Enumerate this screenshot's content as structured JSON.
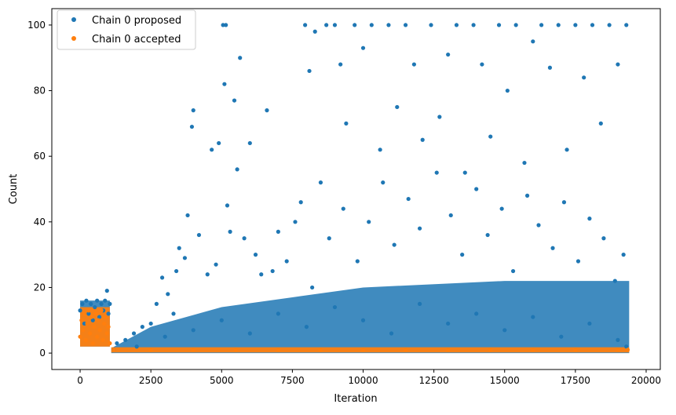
{
  "chart_data": {
    "type": "scatter",
    "title": "",
    "xlabel": "Iteration",
    "ylabel": "Count",
    "xlim": [
      -1000,
      20500
    ],
    "ylim": [
      -5,
      105
    ],
    "x_ticks": [
      0,
      2500,
      5000,
      7500,
      10000,
      12500,
      15000,
      17500,
      20000
    ],
    "x_tick_labels": [
      "0",
      "2500",
      "5000",
      "7500",
      "10000",
      "12500",
      "15000",
      "17500",
      "20000"
    ],
    "y_ticks": [
      0,
      20,
      40,
      60,
      80,
      100
    ],
    "y_tick_labels": [
      "0",
      "20",
      "40",
      "60",
      "80",
      "100"
    ],
    "grid": false,
    "legend": {
      "placement": "top-left"
    },
    "series": [
      {
        "name": "Chain 0 proposed",
        "color": "#1f77b4",
        "points": [
          [
            0,
            13
          ],
          [
            80,
            15
          ],
          [
            150,
            9
          ],
          [
            220,
            16
          ],
          [
            300,
            12
          ],
          [
            380,
            15
          ],
          [
            450,
            10
          ],
          [
            520,
            14
          ],
          [
            600,
            16
          ],
          [
            680,
            11
          ],
          [
            750,
            15
          ],
          [
            820,
            13
          ],
          [
            880,
            16
          ],
          [
            950,
            19
          ],
          [
            1000,
            12
          ],
          [
            1050,
            15
          ],
          [
            1300,
            3
          ],
          [
            1600,
            4
          ],
          [
            1900,
            6
          ],
          [
            2200,
            8
          ],
          [
            2500,
            9
          ],
          [
            2700,
            15
          ],
          [
            2900,
            23
          ],
          [
            3100,
            18
          ],
          [
            3300,
            12
          ],
          [
            3400,
            25
          ],
          [
            3500,
            32
          ],
          [
            3700,
            29
          ],
          [
            3800,
            42
          ],
          [
            3950,
            69
          ],
          [
            4000,
            74
          ],
          [
            4200,
            36
          ],
          [
            4500,
            24
          ],
          [
            4650,
            62
          ],
          [
            4800,
            27
          ],
          [
            4900,
            64
          ],
          [
            5050,
            100
          ],
          [
            5150,
            100
          ],
          [
            5100,
            82
          ],
          [
            5200,
            45
          ],
          [
            5300,
            37
          ],
          [
            5450,
            77
          ],
          [
            5550,
            56
          ],
          [
            5650,
            90
          ],
          [
            5800,
            35
          ],
          [
            6000,
            64
          ],
          [
            6200,
            30
          ],
          [
            6400,
            24
          ],
          [
            6600,
            74
          ],
          [
            6800,
            25
          ],
          [
            7000,
            37
          ],
          [
            7300,
            28
          ],
          [
            7600,
            40
          ],
          [
            7800,
            46
          ],
          [
            7950,
            100
          ],
          [
            8100,
            86
          ],
          [
            8300,
            98
          ],
          [
            8500,
            52
          ],
          [
            8700,
            100
          ],
          [
            9000,
            100
          ],
          [
            9200,
            88
          ],
          [
            9400,
            70
          ],
          [
            9700,
            100
          ],
          [
            10000,
            93
          ],
          [
            10300,
            100
          ],
          [
            10600,
            62
          ],
          [
            10900,
            100
          ],
          [
            11200,
            75
          ],
          [
            11500,
            100
          ],
          [
            11800,
            88
          ],
          [
            12100,
            65
          ],
          [
            12400,
            100
          ],
          [
            12700,
            72
          ],
          [
            13000,
            91
          ],
          [
            13300,
            100
          ],
          [
            13600,
            55
          ],
          [
            13900,
            100
          ],
          [
            14200,
            88
          ],
          [
            14500,
            66
          ],
          [
            14800,
            100
          ],
          [
            15100,
            80
          ],
          [
            15400,
            100
          ],
          [
            15700,
            58
          ],
          [
            16000,
            95
          ],
          [
            16300,
            100
          ],
          [
            16600,
            87
          ],
          [
            16900,
            100
          ],
          [
            17200,
            62
          ],
          [
            17500,
            100
          ],
          [
            17800,
            84
          ],
          [
            18100,
            100
          ],
          [
            18400,
            70
          ],
          [
            18700,
            100
          ],
          [
            19000,
            88
          ],
          [
            19300,
            100
          ],
          [
            8200,
            20
          ],
          [
            8800,
            35
          ],
          [
            9300,
            44
          ],
          [
            9800,
            28
          ],
          [
            10200,
            40
          ],
          [
            10700,
            52
          ],
          [
            11100,
            33
          ],
          [
            11600,
            47
          ],
          [
            12000,
            38
          ],
          [
            12600,
            55
          ],
          [
            13100,
            42
          ],
          [
            13500,
            30
          ],
          [
            14000,
            50
          ],
          [
            14400,
            36
          ],
          [
            14900,
            44
          ],
          [
            15300,
            25
          ],
          [
            15800,
            48
          ],
          [
            16200,
            39
          ],
          [
            16700,
            32
          ],
          [
            17100,
            46
          ],
          [
            17600,
            28
          ],
          [
            18000,
            41
          ],
          [
            18500,
            35
          ],
          [
            18900,
            22
          ],
          [
            19200,
            30
          ],
          [
            1200,
            1
          ],
          [
            2000,
            2
          ],
          [
            3000,
            5
          ],
          [
            4000,
            7
          ],
          [
            5000,
            10
          ],
          [
            6000,
            6
          ],
          [
            7000,
            12
          ],
          [
            8000,
            8
          ],
          [
            9000,
            14
          ],
          [
            10000,
            10
          ],
          [
            11000,
            6
          ],
          [
            12000,
            15
          ],
          [
            13000,
            9
          ],
          [
            14000,
            12
          ],
          [
            15000,
            7
          ],
          [
            16000,
            11
          ],
          [
            17000,
            5
          ],
          [
            18000,
            9
          ],
          [
            19000,
            4
          ],
          [
            19300,
            2
          ]
        ]
      },
      {
        "name": "Chain 0 accepted",
        "color": "#ff7f0e",
        "points": [
          [
            0,
            5
          ],
          [
            50,
            10
          ],
          [
            100,
            7
          ],
          [
            150,
            12
          ],
          [
            200,
            4
          ],
          [
            250,
            9
          ],
          [
            300,
            13
          ],
          [
            350,
            6
          ],
          [
            400,
            11
          ],
          [
            450,
            3
          ],
          [
            500,
            8
          ],
          [
            550,
            12
          ],
          [
            600,
            5
          ],
          [
            650,
            10
          ],
          [
            700,
            7
          ],
          [
            750,
            13
          ],
          [
            800,
            4
          ],
          [
            850,
            9
          ],
          [
            900,
            11
          ],
          [
            950,
            6
          ],
          [
            1000,
            8
          ],
          [
            1050,
            3
          ],
          [
            1200,
            1
          ],
          [
            2500,
            1
          ],
          [
            4000,
            1
          ],
          [
            5500,
            1
          ],
          [
            7000,
            1
          ],
          [
            8500,
            1
          ],
          [
            10000,
            1
          ],
          [
            11500,
            1
          ],
          [
            13000,
            1
          ],
          [
            14500,
            1
          ],
          [
            16000,
            1
          ],
          [
            17500,
            1
          ],
          [
            19000,
            1
          ],
          [
            19350,
            1
          ]
        ]
      }
    ]
  }
}
